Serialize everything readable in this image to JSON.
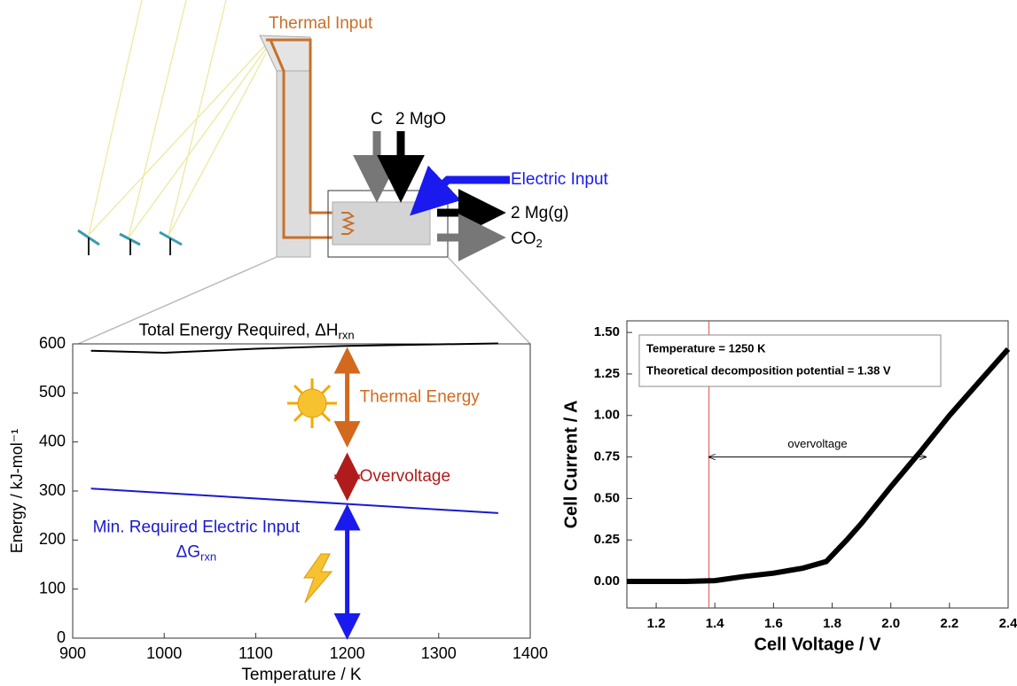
{
  "diagram": {
    "thermal_input": "Thermal Input",
    "carbon": "C",
    "magnesia": "2 MgO",
    "electric_input": "Electric Input",
    "magnesium": "2 Mg(g)",
    "co2": "CO",
    "co2_sub": "2"
  },
  "chart_data": [
    {
      "type": "line",
      "xlabel": "Temperature / K",
      "ylabel": "Energy / kJ-mol⁻¹",
      "xlim": [
        900,
        1400
      ],
      "ylim": [
        0,
        600
      ],
      "xticks": [
        900,
        1000,
        1100,
        1200,
        1300,
        1400
      ],
      "yticks": [
        0,
        100,
        200,
        300,
        400,
        500,
        600
      ],
      "series": [
        {
          "name": "Total Energy Required, ΔH",
          "name_sub": "rxn",
          "color": "#000000",
          "x": [
            920,
            1000,
            1100,
            1200,
            1365
          ],
          "values": [
            586,
            582,
            590,
            596,
            601
          ]
        },
        {
          "name": "Min. Required Electric Input",
          "name2": "ΔG",
          "name_sub": "rxn",
          "color": "#1a1acc",
          "x": [
            920,
            1365
          ],
          "values": [
            305,
            255
          ]
        }
      ],
      "arrows": [
        {
          "label": "Thermal Energy",
          "color": "#d2691e",
          "x": 1200,
          "from": 392,
          "to": 590
        },
        {
          "label": "Overvoltage",
          "color": "#b01c1c",
          "x": 1200,
          "from": 283,
          "to": 375
        },
        {
          "color": "#1a1aee",
          "x": 1200,
          "from": 0,
          "to": 270
        }
      ]
    },
    {
      "type": "line",
      "xlabel": "Cell Voltage / V",
      "ylabel": "Cell Current / A",
      "xlim": [
        1.1,
        2.4
      ],
      "ylim": [
        -0.16,
        1.57
      ],
      "xticks": [
        1.2,
        1.4,
        1.6,
        1.8,
        {
          "value": 2,
          "label": "2.0"
        },
        2.2,
        2.4
      ],
      "yticks": [
        {
          "value": 0,
          "label": "0.00"
        },
        {
          "value": 0.25,
          "label": "0.25"
        },
        {
          "value": 0.5,
          "label": "0.50"
        },
        {
          "value": 0.75,
          "label": "0.75"
        },
        {
          "value": 1,
          "label": "1.00"
        },
        {
          "value": 1.25,
          "label": "1.25"
        },
        {
          "value": 1.5,
          "label": "1.50"
        }
      ],
      "series": [
        {
          "color": "#000000",
          "x": [
            1.1,
            1.3,
            1.4,
            1.5,
            1.6,
            1.7,
            1.78,
            1.85,
            1.9,
            2.0,
            2.1,
            2.2,
            2.3,
            2.4
          ],
          "values": [
            0,
            0,
            0.005,
            0.03,
            0.05,
            0.08,
            0.12,
            0.25,
            0.35,
            0.57,
            0.78,
            1.0,
            1.2,
            1.4
          ]
        }
      ],
      "annotation": [
        "Temperature = 1250 K",
        "Theoretical decomposition potential = 1.38 V"
      ],
      "vline": {
        "x": 1.38,
        "color": "#d9534f"
      },
      "hspan": {
        "label": "overvoltage",
        "y": 0.75,
        "from": 1.38,
        "to": 2.12
      }
    }
  ]
}
